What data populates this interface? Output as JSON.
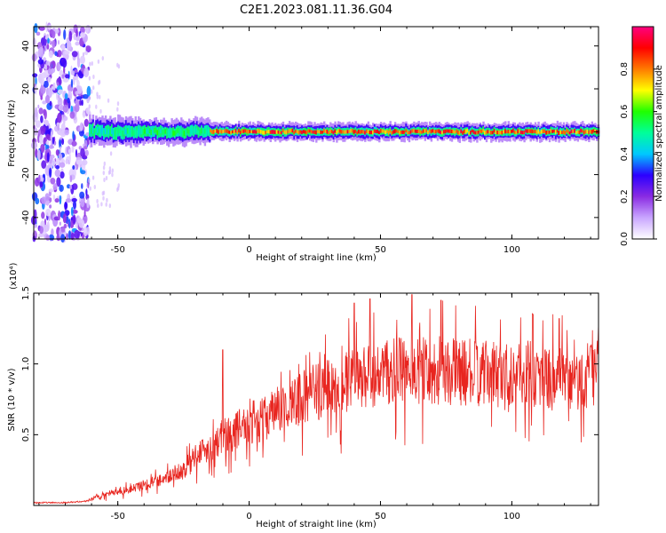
{
  "chart_data": [
    {
      "type": "heatmap",
      "title": "C2E1.2023.081.11.36.G04",
      "xlabel": "Height of straight line (km)",
      "ylabel": "Frequency (Hz)",
      "xlim": [
        -82,
        133
      ],
      "ylim": [
        -50,
        49
      ],
      "xticks": [
        -50,
        0,
        50,
        100
      ],
      "xtick_labels": [
        "-50",
        "0",
        "50",
        "100"
      ],
      "yticks": [
        -40,
        -20,
        0,
        20,
        40
      ],
      "ytick_labels": [
        "-40",
        "-20",
        "0",
        "20",
        "40"
      ],
      "colorbar": {
        "label": "Normalized spectral amplitude",
        "range": [
          0,
          1
        ],
        "ticks": [
          0.0,
          0.2,
          0.4,
          0.6,
          0.8
        ],
        "tick_labels": [
          "0.0",
          "0.2",
          "0.4",
          "0.6",
          "0.8"
        ],
        "colormap": [
          "#ffffff",
          "#c9a6ff",
          "#8a2be2",
          "#2b00ff",
          "#00c8ff",
          "#00ff9a",
          "#1fff00",
          "#ffff00",
          "#ff7a00",
          "#ff0000",
          "#ff0080"
        ]
      },
      "ridge": {
        "frequency_hz": 0,
        "noise_region_x": [
          -82,
          -61
        ],
        "band_segments": [
          {
            "x": [
              -61,
              -40
            ],
            "halfwidth_hz": 4,
            "peak": 0.55
          },
          {
            "x": [
              -40,
              -15
            ],
            "halfwidth_hz": 3.5,
            "peak": 0.6
          },
          {
            "x": [
              -15,
              133
            ],
            "halfwidth_hz": 2.5,
            "peak": 0.95
          }
        ]
      },
      "grid": false
    },
    {
      "type": "line",
      "title": "",
      "xlabel": "Height of straight line (km)",
      "ylabel": "SNR (10 * v/v)",
      "y_multiplier_label": "(x10⁴)",
      "xlim": [
        -82,
        133
      ],
      "ylim": [
        0,
        1.5
      ],
      "xticks": [
        -50,
        0,
        50,
        100
      ],
      "xtick_labels": [
        "-50",
        "0",
        "50",
        "100"
      ],
      "yticks": [
        0.5,
        1.0,
        1.5
      ],
      "ytick_labels": [
        "0.5",
        "1.0",
        "1.5"
      ],
      "line_color": "#e8251f",
      "envelope": {
        "x": [
          -82,
          -70,
          -62,
          -55,
          -45,
          -35,
          -25,
          -20,
          -15,
          -10,
          -5,
          0,
          5,
          10,
          15,
          20,
          25,
          30,
          40,
          50,
          60,
          70,
          80,
          90,
          100,
          110,
          120,
          125,
          133
        ],
        "y": [
          0.02,
          0.02,
          0.03,
          0.08,
          0.12,
          0.18,
          0.25,
          0.38,
          0.42,
          0.5,
          0.55,
          0.6,
          0.62,
          0.68,
          0.72,
          0.78,
          0.82,
          0.86,
          0.9,
          0.95,
          0.98,
          0.98,
          0.97,
          0.95,
          0.96,
          0.95,
          0.9,
          0.88,
          1.0
        ]
      },
      "peaks": [
        {
          "x": -10,
          "y": 1.1
        },
        {
          "x": 40,
          "y": 1.43
        },
        {
          "x": 46,
          "y": 1.46
        },
        {
          "x": 62,
          "y": 1.49
        },
        {
          "x": 73,
          "y": 1.45
        },
        {
          "x": 108,
          "y": 1.35
        },
        {
          "x": 118,
          "y": 1.32
        }
      ],
      "grid": false
    }
  ]
}
